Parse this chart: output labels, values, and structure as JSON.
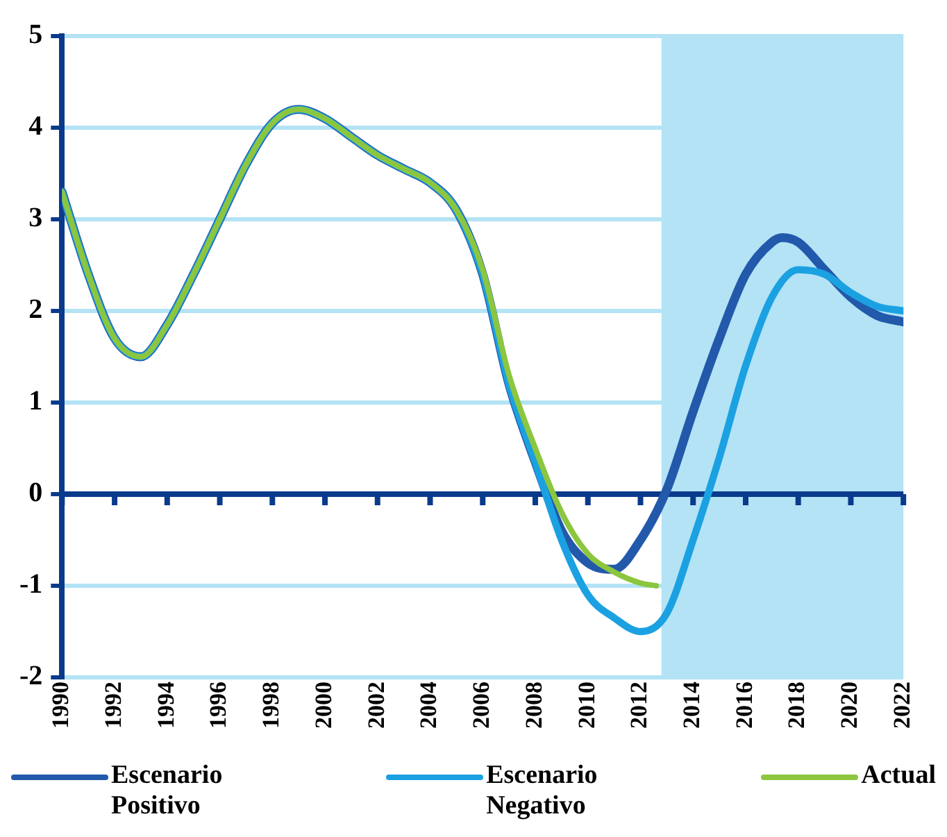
{
  "chart_data": {
    "type": "line",
    "xlim": [
      1990,
      2022
    ],
    "xticks": [
      1990,
      1992,
      1994,
      1996,
      1998,
      2000,
      2002,
      2004,
      2006,
      2008,
      2010,
      2012,
      2014,
      2016,
      2018,
      2020,
      2022
    ],
    "ylim": [
      -2,
      5
    ],
    "yticks": [
      -2,
      -1,
      0,
      1,
      2,
      3,
      4,
      5
    ],
    "grid": "y",
    "legend": "bottom",
    "marker": "none",
    "line_style": "solid",
    "bands": [
      {
        "axis": "x",
        "from": 2012.8,
        "to": 2022,
        "color": "#b3e3f5"
      }
    ],
    "ref_lines": [
      {
        "axis": "y",
        "value": 0,
        "color": "#0a3a8c"
      }
    ],
    "series": [
      {
        "name": "Escenario Positivo",
        "color": "#2259ab",
        "x": [
          1990,
          1991,
          1992,
          1993,
          1994,
          1995,
          1996,
          1997,
          1998,
          1999,
          2000,
          2001,
          2002,
          2003,
          2004,
          2005,
          2006,
          2007,
          2008,
          2009,
          2010,
          2011,
          2012,
          2013,
          2014,
          2015,
          2016,
          2017,
          2017.4,
          2018,
          2019,
          2020,
          2021,
          2022
        ],
        "values": [
          3.3,
          2.4,
          1.7,
          1.5,
          1.85,
          2.4,
          3.0,
          3.6,
          4.05,
          4.2,
          4.1,
          3.9,
          3.7,
          3.55,
          3.4,
          3.1,
          2.4,
          1.2,
          0.35,
          -0.4,
          -0.75,
          -0.82,
          -0.5,
          0.05,
          0.9,
          1.7,
          2.4,
          2.75,
          2.8,
          2.75,
          2.45,
          2.15,
          1.95,
          1.88
        ]
      },
      {
        "name": "Escenario Negativo",
        "color": "#1ba1e2",
        "x": [
          1990,
          1991,
          1992,
          1993,
          1994,
          1995,
          1996,
          1997,
          1998,
          1999,
          2000,
          2001,
          2002,
          2003,
          2004,
          2005,
          2006,
          2007,
          2008,
          2009,
          2010,
          2011,
          2012,
          2013,
          2014,
          2015,
          2016,
          2017,
          2018,
          2019,
          2020,
          2021,
          2022
        ],
        "values": [
          3.3,
          2.4,
          1.7,
          1.5,
          1.85,
          2.4,
          3.0,
          3.6,
          4.05,
          4.2,
          4.1,
          3.9,
          3.7,
          3.55,
          3.4,
          3.1,
          2.4,
          1.2,
          0.35,
          -0.5,
          -1.1,
          -1.35,
          -1.5,
          -1.3,
          -0.5,
          0.4,
          1.4,
          2.15,
          2.45,
          2.4,
          2.2,
          2.05,
          2.0
        ]
      },
      {
        "name": "Actual",
        "color": "#8cc63f",
        "x": [
          1990,
          1991,
          1992,
          1993,
          1994,
          1995,
          1996,
          1997,
          1998,
          1999,
          2000,
          2001,
          2002,
          2003,
          2004,
          2005,
          2006,
          2007,
          2008,
          2009,
          2010,
          2011,
          2012,
          2012.6
        ],
        "values": [
          3.3,
          2.4,
          1.7,
          1.5,
          1.85,
          2.4,
          3.0,
          3.6,
          4.05,
          4.2,
          4.1,
          3.9,
          3.7,
          3.55,
          3.4,
          3.1,
          2.45,
          1.3,
          0.5,
          -0.2,
          -0.65,
          -0.85,
          -0.97,
          -1.0
        ]
      }
    ]
  }
}
